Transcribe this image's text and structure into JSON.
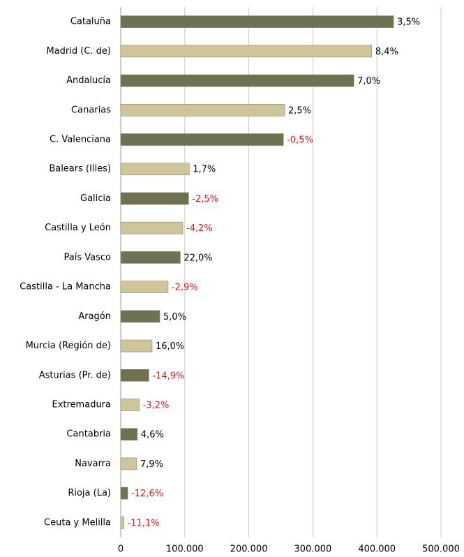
{
  "chart_data": {
    "type": "barh",
    "categories": [
      "Cataluña",
      "Madrid (C. de)",
      "Andalucía",
      "Canarias",
      "C. Valenciana",
      "Balears (Illes)",
      "Galicia",
      "Castilla y León",
      "País Vasco",
      "Castilla - La Mancha",
      "Aragón",
      "Murcia (Región de)",
      "Asturias (Pr. de)",
      "Extremadura",
      "Cantabria",
      "Navarra",
      "Rioja (La)",
      "Ceuta y Melilla"
    ],
    "values": [
      426000,
      392000,
      364000,
      256000,
      254000,
      107000,
      106000,
      97000,
      93000,
      74000,
      61000,
      49000,
      44000,
      29000,
      26000,
      25000,
      11000,
      5000
    ],
    "changes": [
      3.5,
      8.4,
      7.0,
      2.5,
      -0.5,
      1.7,
      -2.5,
      -4.2,
      22.0,
      -2.9,
      5.0,
      16.0,
      -14.9,
      -3.2,
      4.6,
      7.9,
      -12.6,
      -11.1
    ],
    "change_labels": [
      "3,5%",
      "8,4%",
      "7,0%",
      "2,5%",
      "-0,5%",
      "1,7%",
      "-2,5%",
      "-4,2%",
      "22,0%",
      "-2,9%",
      "5,0%",
      "16,0%",
      "-14,9%",
      "-3,2%",
      "4,6%",
      "7,9%",
      "-12,6%",
      "-11,1%"
    ],
    "colors": [
      "#6e7152",
      "#cfc59b"
    ],
    "positive_label_color": "#000000",
    "negative_label_color": "#e8141b",
    "xlim": [
      0,
      500000
    ],
    "xticks": [
      0,
      {
        "value": 100000,
        "label": "100.000"
      },
      {
        "value": 200000,
        "label": "200.000"
      },
      {
        "value": 300000,
        "label": "300.000"
      },
      {
        "value": 400000,
        "label": "400.000"
      },
      {
        "value": 500000,
        "label": "500.000"
      }
    ],
    "grid": true
  }
}
